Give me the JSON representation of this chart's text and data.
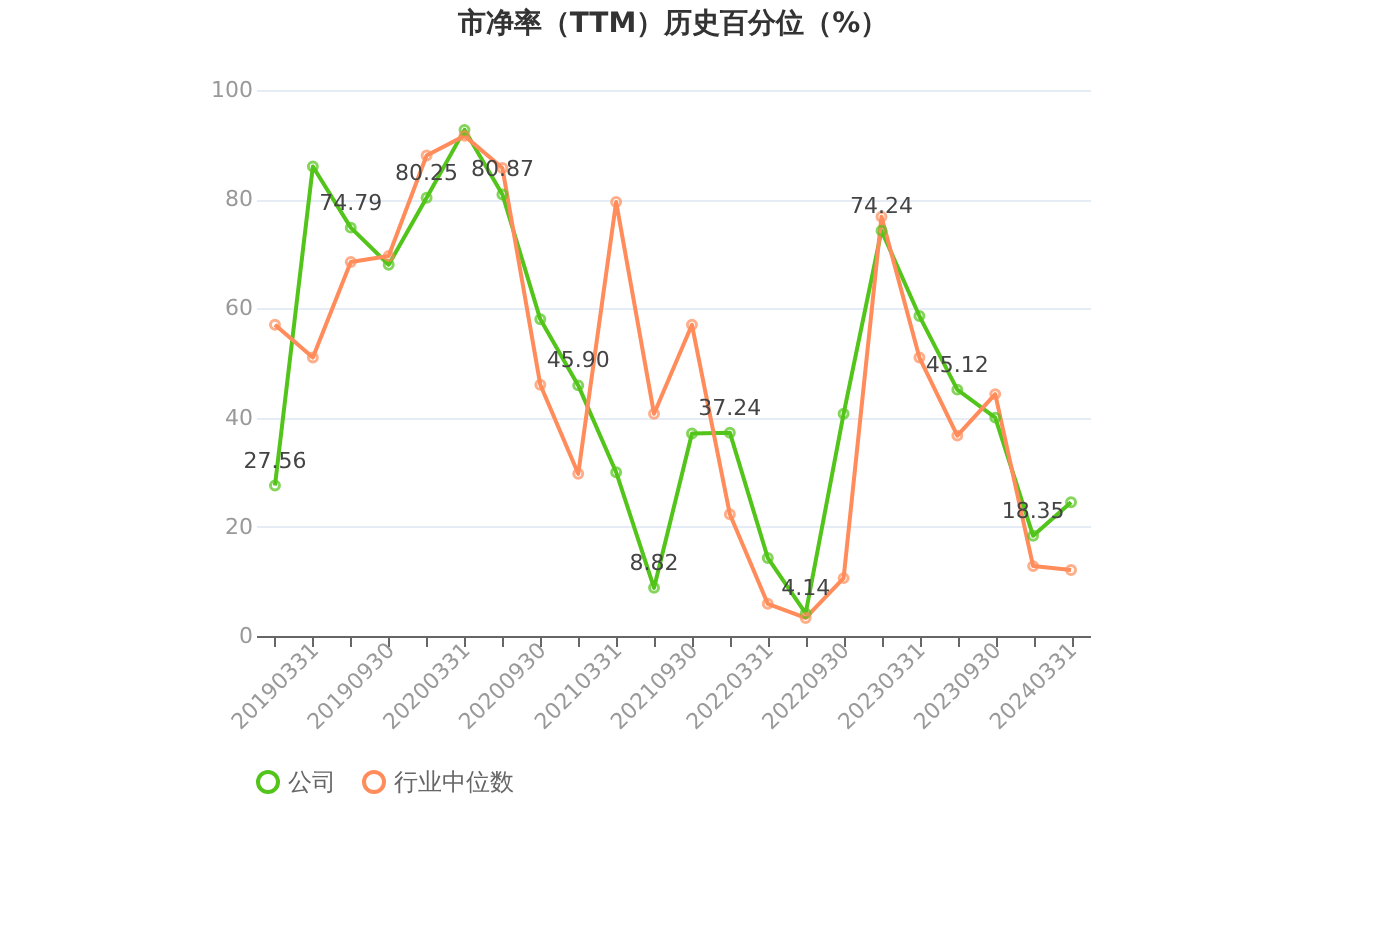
{
  "chart_data": {
    "type": "line",
    "title": "市净率（TTM）历史百分位（%）",
    "categories": [
      "20190331",
      null,
      "20190930",
      null,
      "20200331",
      null,
      "20200930",
      null,
      "20210331",
      null,
      "20210930",
      null,
      "20220331",
      null,
      "20220930",
      null,
      "20230331",
      null,
      "20230930",
      null,
      "20240331",
      null
    ],
    "series": [
      {
        "name": "公司",
        "color": "#52c41a",
        "values": [
          27.56,
          86,
          74.79,
          68,
          80.25,
          92.7,
          80.87,
          58,
          45.9,
          30,
          8.82,
          37.1,
          37.24,
          14.3,
          4.14,
          40.7,
          74.24,
          58.6,
          45.12,
          40,
          18.35,
          24.5
        ],
        "value_labels": [
          "27.56",
          null,
          "74.79",
          null,
          "80.25",
          null,
          "80.87",
          null,
          "45.90",
          null,
          "8.82",
          null,
          "37.24",
          null,
          "4.14",
          null,
          "74.24",
          null,
          "45.12",
          null,
          "18.35",
          null
        ]
      },
      {
        "name": "行业中位数",
        "color": "#ff8c5a",
        "values": [
          57,
          51,
          68.5,
          69.6,
          88,
          91.6,
          85.7,
          46,
          29.7,
          79.5,
          40.7,
          57,
          22.3,
          5.9,
          3.3,
          10.6,
          76.8,
          51,
          36.7,
          44.3,
          12.8,
          12.1
        ]
      }
    ],
    "ylim": [
      0,
      100
    ],
    "yticks": [
      0,
      20,
      40,
      60,
      80,
      100
    ],
    "grid": "y",
    "legend": "bottom",
    "marker": "circle",
    "line_style": "solid"
  }
}
